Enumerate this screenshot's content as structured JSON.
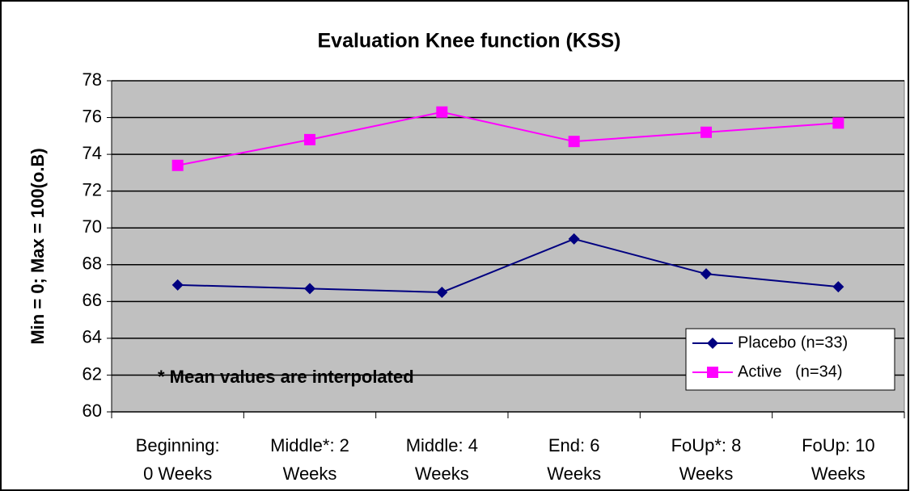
{
  "chart_data": {
    "type": "line",
    "title": "Evaluation Knee function (KSS)",
    "y_label": "Min = 0; Max = 100(o.B)",
    "annotation": "* Mean values are interpolated",
    "categories": [
      "Beginning:\n0 Weeks",
      "Middle*: 2\nWeeks",
      "Middle: 4\nWeeks",
      "End: 6\nWeeks",
      "FoUp*: 8\nWeeks",
      "FoUp: 10\nWeeks"
    ],
    "series": [
      {
        "name": "Placebo (n=33)",
        "color": "#000080",
        "marker": "diamond",
        "values": [
          66.9,
          66.7,
          66.5,
          69.4,
          67.5,
          66.8
        ]
      },
      {
        "name": "Active   (n=34)",
        "color": "#ff00ff",
        "marker": "square",
        "values": [
          73.4,
          74.8,
          76.3,
          74.7,
          75.2,
          75.7
        ]
      }
    ],
    "ylim": [
      60,
      78
    ],
    "yticks": [
      60,
      62,
      64,
      66,
      68,
      70,
      72,
      74,
      76,
      78
    ],
    "grid": true,
    "legend": "lower right"
  }
}
